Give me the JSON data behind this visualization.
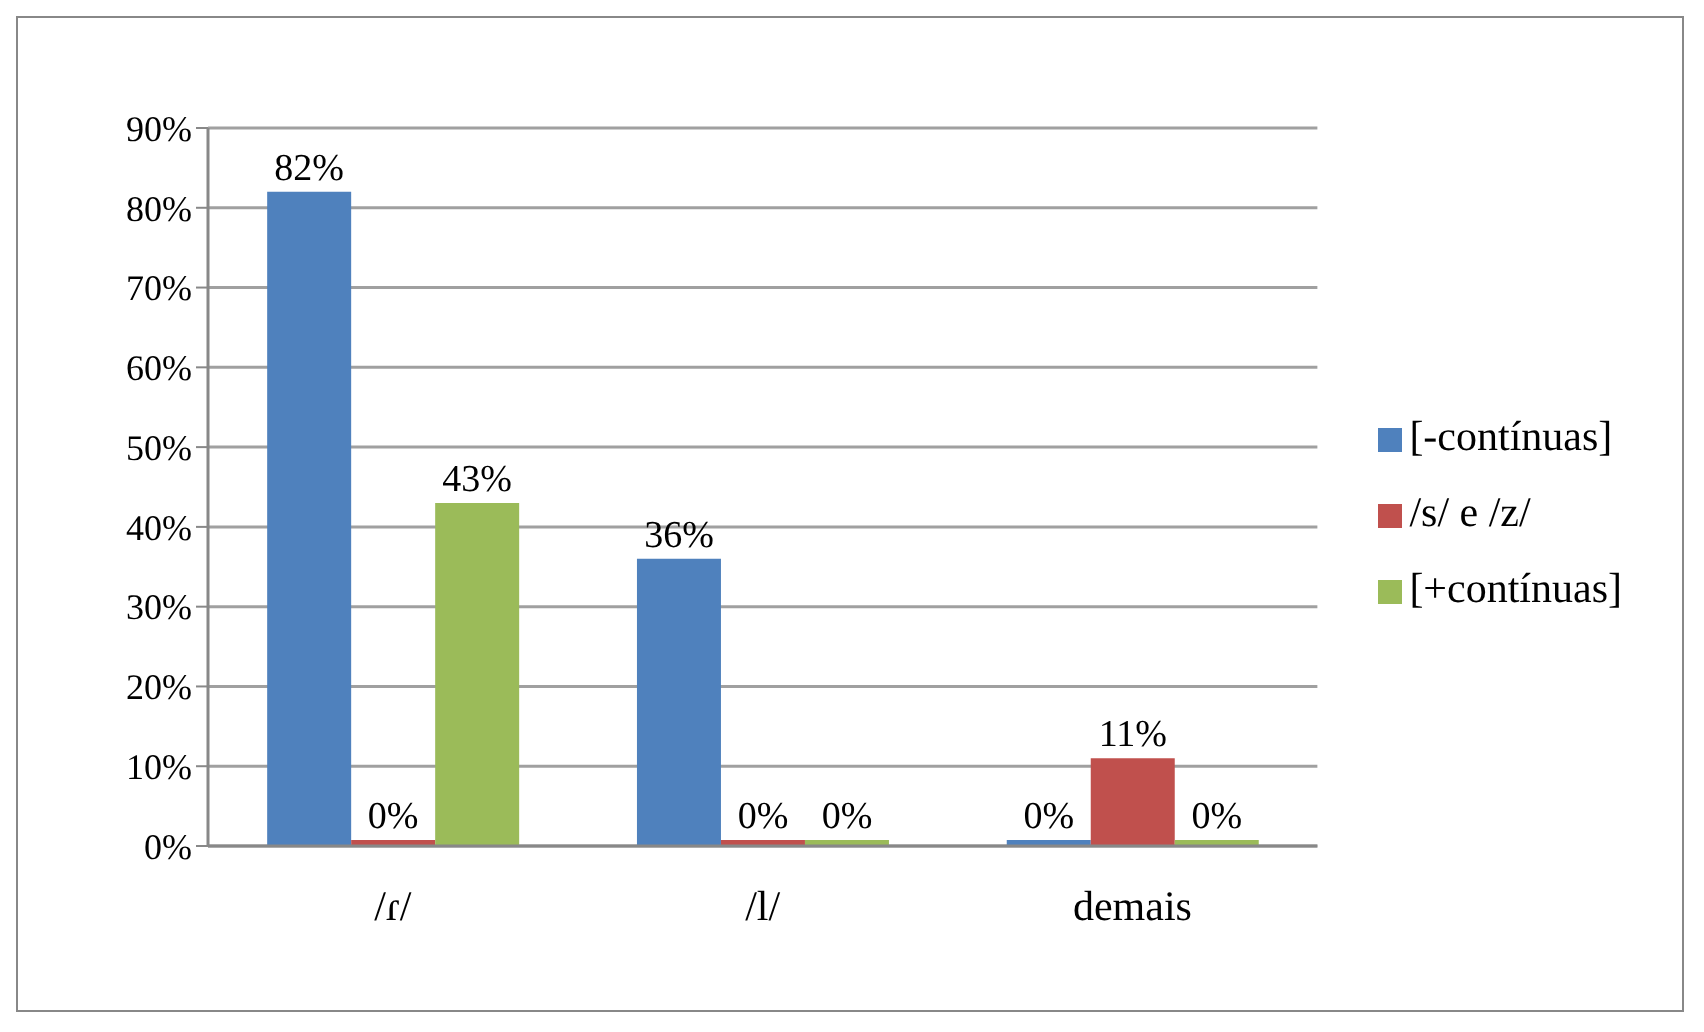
{
  "chart_data": {
    "type": "bar",
    "categories": [
      "/ɾ/",
      "/l/",
      "demais"
    ],
    "series": [
      {
        "name": "[-contínuas]",
        "color": "#4f81bd",
        "values": [
          82,
          36,
          0
        ],
        "value_labels": [
          "82%",
          "36%",
          "0%"
        ]
      },
      {
        "name": "/s/ e /z/",
        "color": "#c0504d",
        "values": [
          0,
          0,
          11
        ],
        "value_labels": [
          "0%",
          "0%",
          "11%"
        ]
      },
      {
        "name": "[+contínuas]",
        "color": "#9bbb59",
        "values": [
          43,
          0,
          0
        ],
        "value_labels": [
          "43%",
          "0%",
          "0%"
        ]
      }
    ],
    "ylim": [
      0,
      90
    ],
    "yticks": [
      {
        "value": 0,
        "label": "0%"
      },
      {
        "value": 10,
        "label": "10%"
      },
      {
        "value": 20,
        "label": "20%"
      },
      {
        "value": 30,
        "label": "30%"
      },
      {
        "value": 40,
        "label": "40%"
      },
      {
        "value": 50,
        "label": "50%"
      },
      {
        "value": 60,
        "label": "60%"
      },
      {
        "value": 70,
        "label": "70%"
      },
      {
        "value": 80,
        "label": "80%"
      },
      {
        "value": 90,
        "label": "90%"
      }
    ],
    "grid": "y",
    "legend": "right"
  }
}
